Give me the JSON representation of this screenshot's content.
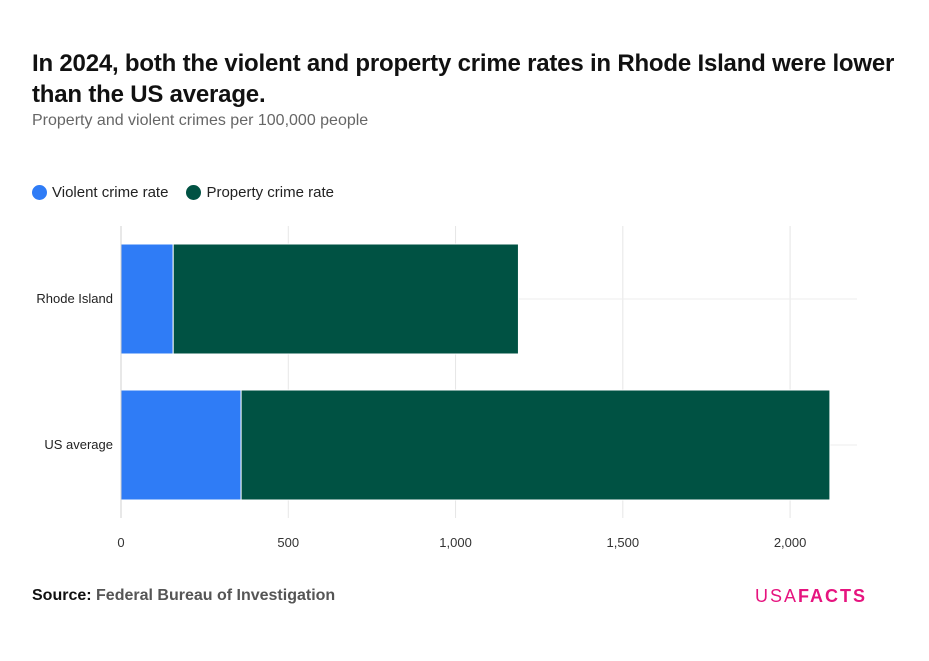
{
  "header": {
    "title": "In 2024, both the violent and property crime rates in Rhode Island were lower than the US average.",
    "subtitle": "Property and violent crimes per 100,000 people"
  },
  "legend": {
    "items": [
      {
        "label": "Violent crime rate",
        "color": "#2f7cf6"
      },
      {
        "label": "Property crime rate",
        "color": "#005243"
      }
    ]
  },
  "chart_data": {
    "type": "bar",
    "orientation": "horizontal",
    "stacked": true,
    "categories": [
      "Rhode Island",
      "US average"
    ],
    "series": [
      {
        "name": "Violent crime rate",
        "color": "#2f7cf6",
        "values": [
          156,
          359
        ]
      },
      {
        "name": "Property crime rate",
        "color": "#005243",
        "values": [
          1032,
          1760
        ]
      }
    ],
    "xlim": [
      0,
      2200
    ],
    "xticks": [
      0,
      500,
      1000,
      1500,
      2000
    ],
    "xtick_labels": [
      "0",
      "500",
      "1,000",
      "1,500",
      "2,000"
    ],
    "grid": true,
    "legend_position": "top-left"
  },
  "footer": {
    "source_label": "Source:",
    "source_value": "Federal Bureau of Investigation",
    "logo_part1": "USA",
    "logo_part2": "FACTS"
  }
}
